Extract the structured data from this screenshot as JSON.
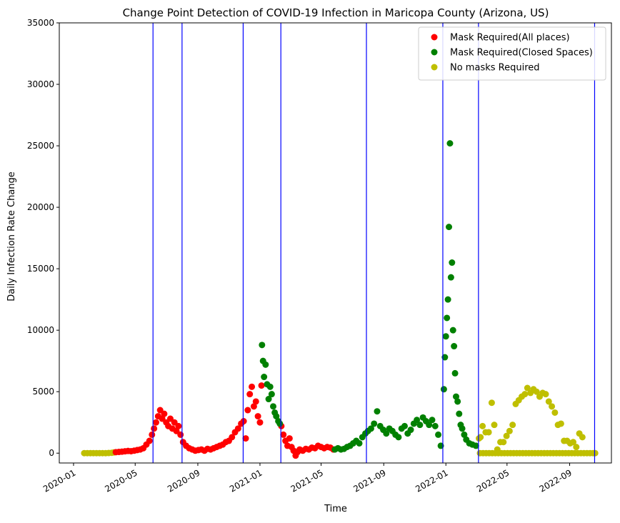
{
  "chart_data": {
    "type": "scatter",
    "title": "Change Point Detection of COVID-19 Infection in Maricopa County (Arizona, US)",
    "xlabel": "Time",
    "ylabel": "Daily Infection Rate Change",
    "xlim": [
      "2019-12-04",
      "2022-11-22"
    ],
    "ylim": [
      -800,
      35000
    ],
    "x_ticks": [
      "2020-01",
      "2020-05",
      "2020-09",
      "2021-01",
      "2021-05",
      "2021-09",
      "2022-01",
      "2022-05",
      "2022-09"
    ],
    "y_ticks": [
      0,
      5000,
      10000,
      15000,
      20000,
      25000,
      30000,
      35000
    ],
    "legend_position": "top-right",
    "grid": false,
    "change_points": [
      "2020-06-05",
      "2020-08-01",
      "2020-11-29",
      "2021-02-11",
      "2021-07-29",
      "2021-12-26",
      "2022-03-06",
      "2022-10-20"
    ],
    "change_point_color": "#0000ff",
    "series": [
      {
        "name": "No masks Required",
        "color": "#bfbf00",
        "points": [
          [
            "2020-01-22",
            0
          ],
          [
            "2020-01-28",
            0
          ],
          [
            "2020-02-03",
            0
          ],
          [
            "2020-02-09",
            0
          ],
          [
            "2020-02-15",
            0
          ],
          [
            "2020-02-21",
            0
          ],
          [
            "2020-02-27",
            0
          ],
          [
            "2020-03-04",
            0
          ],
          [
            "2020-03-10",
            10
          ],
          [
            "2020-03-16",
            30
          ],
          [
            "2020-03-20",
            60
          ],
          [
            "2022-03-07",
            1200
          ],
          [
            "2022-03-10",
            1300
          ],
          [
            "2022-03-14",
            2200
          ],
          [
            "2022-03-20",
            1700
          ],
          [
            "2022-03-26",
            1700
          ],
          [
            "2022-04-01",
            4100
          ],
          [
            "2022-04-06",
            2300
          ],
          [
            "2022-04-12",
            300
          ],
          [
            "2022-04-18",
            900
          ],
          [
            "2022-04-24",
            900
          ],
          [
            "2022-04-30",
            1400
          ],
          [
            "2022-05-06",
            1800
          ],
          [
            "2022-05-12",
            2300
          ],
          [
            "2022-05-18",
            4000
          ],
          [
            "2022-05-24",
            4300
          ],
          [
            "2022-05-30",
            4600
          ],
          [
            "2022-06-05",
            4800
          ],
          [
            "2022-06-10",
            5300
          ],
          [
            "2022-06-16",
            4900
          ],
          [
            "2022-06-22",
            5200
          ],
          [
            "2022-06-28",
            5000
          ],
          [
            "2022-07-04",
            4600
          ],
          [
            "2022-07-10",
            4900
          ],
          [
            "2022-07-16",
            4800
          ],
          [
            "2022-07-22",
            4200
          ],
          [
            "2022-07-28",
            3800
          ],
          [
            "2022-08-03",
            3300
          ],
          [
            "2022-08-09",
            2300
          ],
          [
            "2022-08-15",
            2400
          ],
          [
            "2022-08-21",
            1000
          ],
          [
            "2022-08-27",
            1000
          ],
          [
            "2022-09-02",
            800
          ],
          [
            "2022-09-08",
            900
          ],
          [
            "2022-09-14",
            500
          ],
          [
            "2022-09-20",
            1600
          ],
          [
            "2022-09-26",
            1300
          ],
          [
            "2022-03-09",
            0
          ],
          [
            "2022-03-15",
            0
          ],
          [
            "2022-03-21",
            0
          ],
          [
            "2022-03-27",
            0
          ],
          [
            "2022-04-02",
            0
          ],
          [
            "2022-04-08",
            0
          ],
          [
            "2022-04-14",
            0
          ],
          [
            "2022-04-20",
            0
          ],
          [
            "2022-04-26",
            0
          ],
          [
            "2022-05-02",
            0
          ],
          [
            "2022-05-08",
            0
          ],
          [
            "2022-05-14",
            0
          ],
          [
            "2022-05-20",
            0
          ],
          [
            "2022-05-26",
            0
          ],
          [
            "2022-06-01",
            0
          ],
          [
            "2022-06-07",
            0
          ],
          [
            "2022-06-13",
            0
          ],
          [
            "2022-06-19",
            0
          ],
          [
            "2022-06-25",
            0
          ],
          [
            "2022-07-01",
            0
          ],
          [
            "2022-07-07",
            0
          ],
          [
            "2022-07-13",
            0
          ],
          [
            "2022-07-19",
            0
          ],
          [
            "2022-07-25",
            0
          ],
          [
            "2022-07-31",
            0
          ],
          [
            "2022-08-06",
            0
          ],
          [
            "2022-08-12",
            0
          ],
          [
            "2022-08-18",
            0
          ],
          [
            "2022-08-24",
            0
          ],
          [
            "2022-08-30",
            0
          ],
          [
            "2022-09-05",
            0
          ],
          [
            "2022-09-11",
            0
          ],
          [
            "2022-09-17",
            0
          ],
          [
            "2022-09-23",
            0
          ],
          [
            "2022-09-29",
            0
          ],
          [
            "2022-10-05",
            0
          ],
          [
            "2022-10-11",
            0
          ],
          [
            "2022-10-17",
            0
          ],
          [
            "2022-10-21",
            0
          ]
        ]
      },
      {
        "name": "Mask Required(All places)",
        "color": "#ff0000",
        "points": [
          [
            "2020-03-24",
            80
          ],
          [
            "2020-03-30",
            100
          ],
          [
            "2020-04-05",
            120
          ],
          [
            "2020-04-11",
            150
          ],
          [
            "2020-04-17",
            180
          ],
          [
            "2020-04-23",
            160
          ],
          [
            "2020-04-29",
            200
          ],
          [
            "2020-05-05",
            250
          ],
          [
            "2020-05-11",
            300
          ],
          [
            "2020-05-17",
            400
          ],
          [
            "2020-05-23",
            700
          ],
          [
            "2020-05-29",
            1000
          ],
          [
            "2020-06-03",
            1500
          ],
          [
            "2020-06-07",
            2000
          ],
          [
            "2020-06-11",
            2500
          ],
          [
            "2020-06-15",
            3000
          ],
          [
            "2020-06-19",
            3500
          ],
          [
            "2020-06-23",
            2800
          ],
          [
            "2020-06-27",
            3200
          ],
          [
            "2020-07-01",
            2500
          ],
          [
            "2020-07-05",
            2200
          ],
          [
            "2020-07-09",
            2800
          ],
          [
            "2020-07-13",
            2000
          ],
          [
            "2020-07-17",
            2500
          ],
          [
            "2020-07-21",
            1800
          ],
          [
            "2020-07-25",
            2200
          ],
          [
            "2020-07-29",
            1500
          ],
          [
            "2020-08-03",
            900
          ],
          [
            "2020-08-09",
            600
          ],
          [
            "2020-08-15",
            400
          ],
          [
            "2020-08-21",
            300
          ],
          [
            "2020-08-27",
            200
          ],
          [
            "2020-09-02",
            250
          ],
          [
            "2020-09-08",
            300
          ],
          [
            "2020-09-14",
            200
          ],
          [
            "2020-09-20",
            350
          ],
          [
            "2020-09-26",
            300
          ],
          [
            "2020-10-02",
            400
          ],
          [
            "2020-10-08",
            500
          ],
          [
            "2020-10-14",
            600
          ],
          [
            "2020-10-20",
            700
          ],
          [
            "2020-10-26",
            900
          ],
          [
            "2020-11-01",
            1000
          ],
          [
            "2020-11-07",
            1300
          ],
          [
            "2020-11-13",
            1700
          ],
          [
            "2020-11-19",
            2000
          ],
          [
            "2020-11-25",
            2400
          ],
          [
            "2020-11-30",
            2600
          ],
          [
            "2020-12-04",
            1200
          ],
          [
            "2020-12-08",
            3500
          ],
          [
            "2020-12-12",
            4800
          ],
          [
            "2020-12-16",
            5400
          ],
          [
            "2020-12-20",
            3800
          ],
          [
            "2020-12-24",
            4200
          ],
          [
            "2020-12-28",
            3000
          ],
          [
            "2021-01-01",
            2500
          ],
          [
            "2021-01-04",
            5500
          ],
          [
            "2021-02-12",
            2200
          ],
          [
            "2021-02-16",
            1500
          ],
          [
            "2021-02-20",
            1000
          ],
          [
            "2021-02-24",
            600
          ],
          [
            "2021-02-28",
            1200
          ],
          [
            "2021-03-04",
            500
          ],
          [
            "2021-03-08",
            200
          ],
          [
            "2021-03-12",
            -200
          ],
          [
            "2021-03-16",
            100
          ],
          [
            "2021-03-20",
            300
          ],
          [
            "2021-03-26",
            200
          ],
          [
            "2021-04-01",
            350
          ],
          [
            "2021-04-07",
            300
          ],
          [
            "2021-04-13",
            450
          ],
          [
            "2021-04-19",
            400
          ],
          [
            "2021-04-25",
            600
          ],
          [
            "2021-05-01",
            500
          ],
          [
            "2021-05-07",
            400
          ],
          [
            "2021-05-13",
            500
          ],
          [
            "2021-05-19",
            450
          ],
          [
            "2021-05-25",
            300
          ]
        ]
      },
      {
        "name": "Mask Required(Closed Spaces)",
        "color": "#008000",
        "points": [
          [
            "2021-01-05",
            8800
          ],
          [
            "2021-01-07",
            7500
          ],
          [
            "2021-01-09",
            6200
          ],
          [
            "2021-01-12",
            7200
          ],
          [
            "2021-01-15",
            5600
          ],
          [
            "2021-01-18",
            4400
          ],
          [
            "2021-01-21",
            5400
          ],
          [
            "2021-01-24",
            4800
          ],
          [
            "2021-01-27",
            3800
          ],
          [
            "2021-01-30",
            3300
          ],
          [
            "2021-02-02",
            3000
          ],
          [
            "2021-02-06",
            2600
          ],
          [
            "2021-02-09",
            2400
          ],
          [
            "2021-05-28",
            300
          ],
          [
            "2021-06-03",
            400
          ],
          [
            "2021-06-09",
            300
          ],
          [
            "2021-06-15",
            350
          ],
          [
            "2021-06-21",
            500
          ],
          [
            "2021-06-27",
            600
          ],
          [
            "2021-07-03",
            800
          ],
          [
            "2021-07-09",
            1000
          ],
          [
            "2021-07-15",
            800
          ],
          [
            "2021-07-21",
            1300
          ],
          [
            "2021-07-27",
            1600
          ],
          [
            "2021-08-01",
            1800
          ],
          [
            "2021-08-07",
            2000
          ],
          [
            "2021-08-13",
            2400
          ],
          [
            "2021-08-19",
            3400
          ],
          [
            "2021-08-25",
            2200
          ],
          [
            "2021-08-31",
            1900
          ],
          [
            "2021-09-06",
            1600
          ],
          [
            "2021-09-12",
            2000
          ],
          [
            "2021-09-18",
            1800
          ],
          [
            "2021-09-24",
            1500
          ],
          [
            "2021-09-30",
            1300
          ],
          [
            "2021-10-06",
            2000
          ],
          [
            "2021-10-12",
            2200
          ],
          [
            "2021-10-18",
            1600
          ],
          [
            "2021-10-24",
            1900
          ],
          [
            "2021-10-30",
            2400
          ],
          [
            "2021-11-05",
            2700
          ],
          [
            "2021-11-11",
            2300
          ],
          [
            "2021-11-17",
            2900
          ],
          [
            "2021-11-23",
            2600
          ],
          [
            "2021-11-29",
            2300
          ],
          [
            "2021-12-05",
            2700
          ],
          [
            "2021-12-11",
            2200
          ],
          [
            "2021-12-17",
            1500
          ],
          [
            "2021-12-22",
            600
          ],
          [
            "2021-12-28",
            5200
          ],
          [
            "2021-12-30",
            7800
          ],
          [
            "2022-01-01",
            9500
          ],
          [
            "2022-01-03",
            11000
          ],
          [
            "2022-01-05",
            12500
          ],
          [
            "2022-01-07",
            18400
          ],
          [
            "2022-01-09",
            25200
          ],
          [
            "2022-01-11",
            14300
          ],
          [
            "2022-01-13",
            15500
          ],
          [
            "2022-01-15",
            10000
          ],
          [
            "2022-01-17",
            8700
          ],
          [
            "2022-01-19",
            6500
          ],
          [
            "2022-01-21",
            4600
          ],
          [
            "2022-01-24",
            4200
          ],
          [
            "2022-01-27",
            3200
          ],
          [
            "2022-01-30",
            2300
          ],
          [
            "2022-02-02",
            2000
          ],
          [
            "2022-02-06",
            1500
          ],
          [
            "2022-02-10",
            1100
          ],
          [
            "2022-02-16",
            800
          ],
          [
            "2022-02-22",
            700
          ],
          [
            "2022-03-01",
            600
          ]
        ]
      }
    ]
  }
}
